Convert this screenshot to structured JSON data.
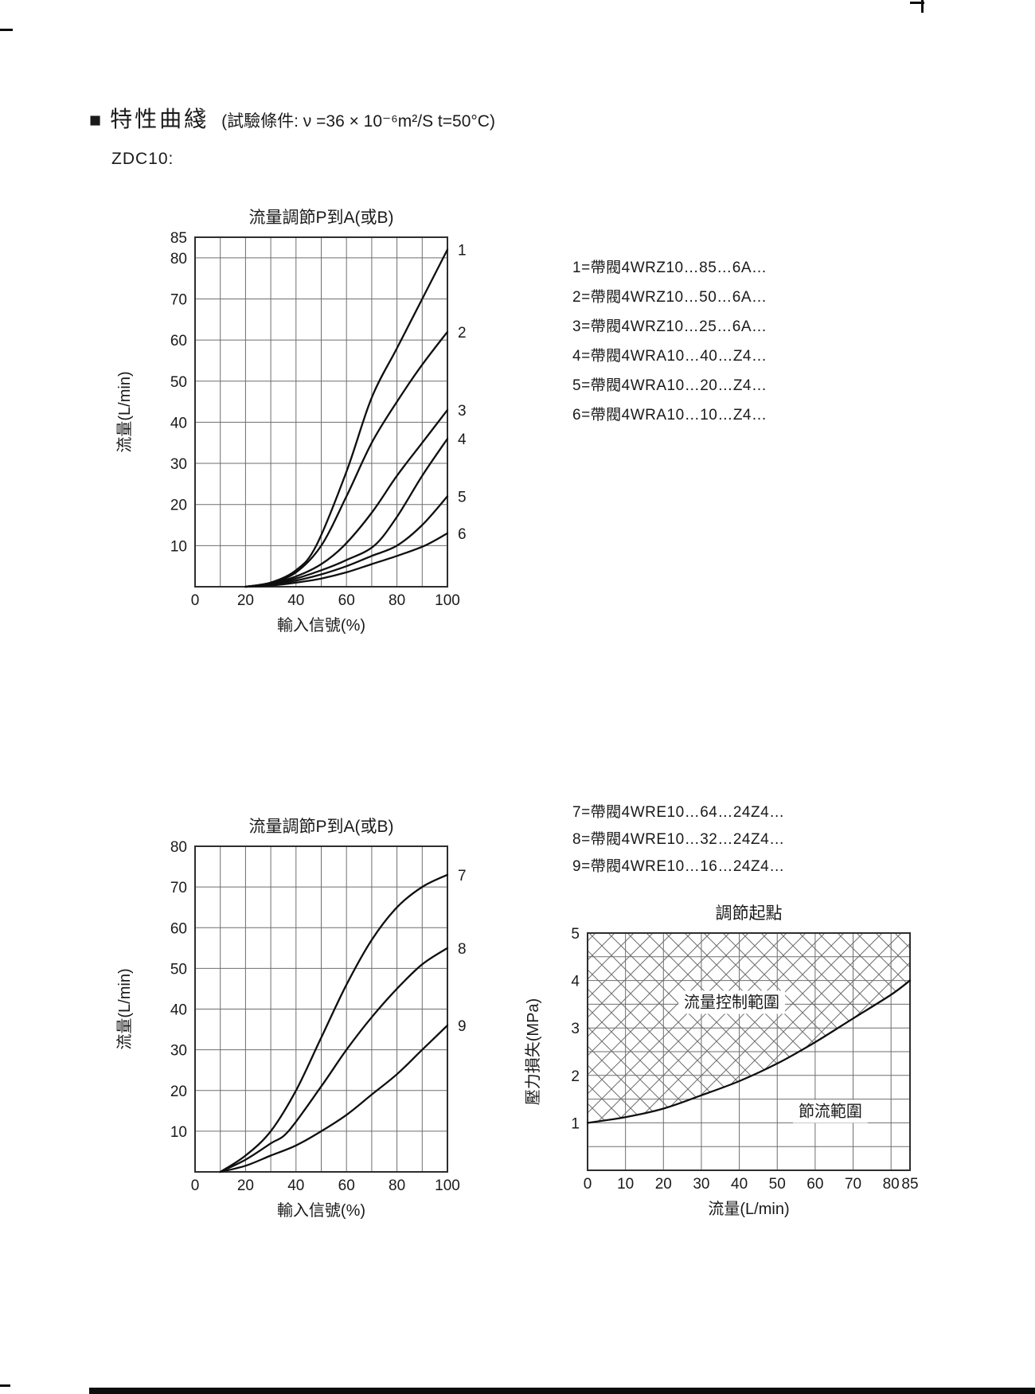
{
  "page": {
    "header": {
      "marker": "■",
      "title": "特性曲綫",
      "condition": "(試驗條件: ν =36 × 10⁻⁶m²/S   t=50°C)"
    },
    "model_label": "ZDC10:"
  },
  "legend1": {
    "items": [
      "1=帶閥4WRZ10…85…6A…",
      "2=帶閥4WRZ10…50…6A…",
      "3=帶閥4WRZ10…25…6A…",
      "4=帶閥4WRA10…40…Z4…",
      "5=帶閥4WRA10…20…Z4…",
      "6=帶閥4WRA10…10…Z4…"
    ]
  },
  "legend2": {
    "items": [
      "7=帶閥4WRE10…64…24Z4…",
      "8=帶閥4WRE10…32…24Z4…",
      "9=帶閥4WRE10…16…24Z4…"
    ]
  },
  "chart_data": [
    {
      "type": "line",
      "title": "流量調節P到A(或B)",
      "xlabel": "輸入信號(%)",
      "ylabel": "流量(L/min)",
      "xlim": [
        0,
        100
      ],
      "ylim": [
        0,
        85
      ],
      "xticks": [
        0,
        20,
        40,
        60,
        80,
        100
      ],
      "xgrid": [
        10,
        20,
        30,
        40,
        50,
        60,
        70,
        80,
        90
      ],
      "yticks": [
        10,
        20,
        30,
        40,
        50,
        60,
        70,
        80,
        85
      ],
      "ygrid": [
        10,
        20,
        30,
        40,
        50,
        60,
        70,
        80
      ],
      "grid": true,
      "legend_position": "right-of-curve-end",
      "series": [
        {
          "name": "1",
          "points": [
            [
              20,
              0
            ],
            [
              30,
              1
            ],
            [
              40,
              4
            ],
            [
              48,
              10
            ],
            [
              60,
              28
            ],
            [
              70,
              46
            ],
            [
              80,
              58
            ],
            [
              90,
              70
            ],
            [
              100,
              82
            ]
          ]
        },
        {
          "name": "2",
          "points": [
            [
              20,
              0
            ],
            [
              30,
              1
            ],
            [
              40,
              3.5
            ],
            [
              50,
              10
            ],
            [
              60,
              22
            ],
            [
              70,
              35
            ],
            [
              80,
              45
            ],
            [
              90,
              54
            ],
            [
              100,
              62
            ]
          ]
        },
        {
          "name": "3",
          "points": [
            [
              20,
              0
            ],
            [
              30,
              0.8
            ],
            [
              40,
              2.5
            ],
            [
              50,
              5.5
            ],
            [
              59,
              10
            ],
            [
              70,
              18
            ],
            [
              80,
              27
            ],
            [
              90,
              35
            ],
            [
              100,
              43
            ]
          ]
        },
        {
          "name": "4",
          "points": [
            [
              20,
              0
            ],
            [
              30,
              0.6
            ],
            [
              40,
              2
            ],
            [
              50,
              4
            ],
            [
              60,
              6.5
            ],
            [
              71,
              10
            ],
            [
              80,
              17
            ],
            [
              90,
              27
            ],
            [
              100,
              36
            ]
          ]
        },
        {
          "name": "5",
          "points": [
            [
              20,
              0
            ],
            [
              30,
              0.5
            ],
            [
              40,
              1.5
            ],
            [
              50,
              3
            ],
            [
              60,
              5
            ],
            [
              70,
              7.5
            ],
            [
              80,
              10
            ],
            [
              90,
              15
            ],
            [
              100,
              22
            ]
          ]
        },
        {
          "name": "6",
          "points": [
            [
              20,
              0
            ],
            [
              30,
              0.3
            ],
            [
              40,
              1
            ],
            [
              50,
              2
            ],
            [
              60,
              3.5
            ],
            [
              70,
              5.5
            ],
            [
              80,
              7.5
            ],
            [
              91,
              10
            ],
            [
              100,
              13
            ]
          ]
        }
      ]
    },
    {
      "type": "line",
      "title": "流量調節P到A(或B)",
      "xlabel": "輸入信號(%)",
      "ylabel": "流量(L/min)",
      "xlim": [
        0,
        100
      ],
      "ylim": [
        0,
        80
      ],
      "xticks": [
        0,
        20,
        40,
        60,
        80,
        100
      ],
      "xgrid": [
        10,
        20,
        30,
        40,
        50,
        60,
        70,
        80,
        90
      ],
      "yticks": [
        10,
        20,
        30,
        40,
        50,
        60,
        70,
        80
      ],
      "ygrid": [
        10,
        20,
        30,
        40,
        50,
        60,
        70
      ],
      "grid": true,
      "legend_position": "right-of-curve-end",
      "series": [
        {
          "name": "7",
          "points": [
            [
              10,
              0
            ],
            [
              20,
              4
            ],
            [
              30,
              10
            ],
            [
              40,
              20
            ],
            [
              50,
              33
            ],
            [
              60,
              46
            ],
            [
              70,
              57
            ],
            [
              80,
              65
            ],
            [
              90,
              70
            ],
            [
              100,
              73
            ]
          ]
        },
        {
          "name": "8",
          "points": [
            [
              10,
              0
            ],
            [
              20,
              3
            ],
            [
              30,
              7
            ],
            [
              37,
              10
            ],
            [
              50,
              21
            ],
            [
              60,
              30
            ],
            [
              70,
              38
            ],
            [
              80,
              45
            ],
            [
              90,
              51
            ],
            [
              100,
              55
            ]
          ]
        },
        {
          "name": "9",
          "points": [
            [
              10,
              0
            ],
            [
              20,
              1.5
            ],
            [
              30,
              4
            ],
            [
              40,
              6.5
            ],
            [
              50,
              10
            ],
            [
              60,
              14
            ],
            [
              70,
              19
            ],
            [
              80,
              24
            ],
            [
              90,
              30
            ],
            [
              100,
              36
            ]
          ]
        }
      ]
    },
    {
      "type": "line",
      "title": "調節起點",
      "xlabel": "流量(L/min)",
      "ylabel": "壓力損失(MPa)",
      "xlim": [
        0,
        85
      ],
      "ylim": [
        0,
        5
      ],
      "xticks": [
        0,
        10,
        20,
        30,
        40,
        50,
        60,
        70,
        80,
        85
      ],
      "xgrid": [
        10,
        20,
        30,
        40,
        50,
        60,
        70,
        80
      ],
      "yticks": [
        1,
        2,
        3,
        4,
        5
      ],
      "ygrid": [
        0.5,
        1,
        1.5,
        2,
        2.5,
        3,
        3.5,
        4,
        4.5
      ],
      "grid": true,
      "hatch_above_curve": true,
      "series": [
        {
          "name": "",
          "points": [
            [
              0,
              1
            ],
            [
              10,
              1.12
            ],
            [
              20,
              1.3
            ],
            [
              30,
              1.58
            ],
            [
              40,
              1.88
            ],
            [
              50,
              2.25
            ],
            [
              60,
              2.7
            ],
            [
              70,
              3.2
            ],
            [
              80,
              3.7
            ],
            [
              85,
              4
            ]
          ]
        }
      ],
      "annotations": [
        {
          "text": "流量控制範圍",
          "x": 38,
          "y": 3.55
        },
        {
          "text": "節流範圍",
          "x": 64,
          "y": 1.25
        }
      ]
    }
  ]
}
